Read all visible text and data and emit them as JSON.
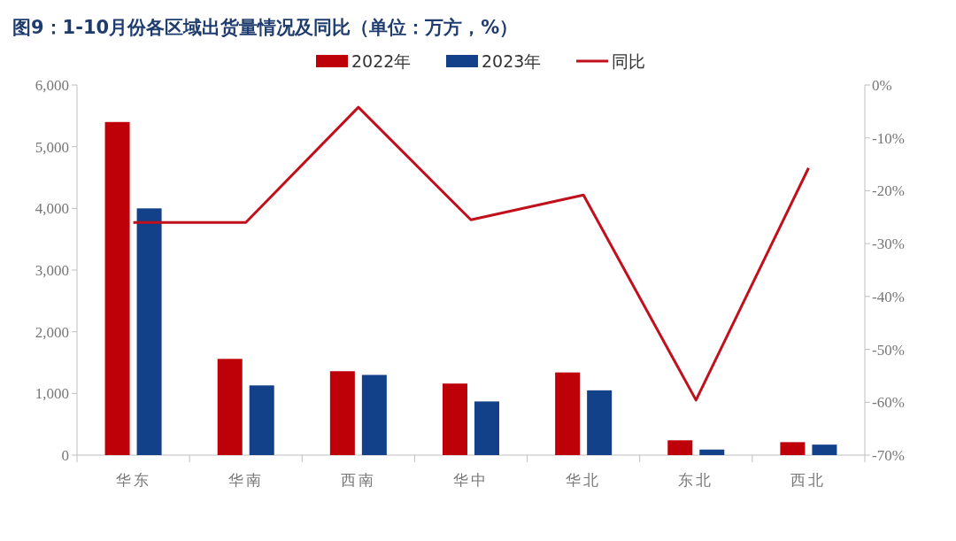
{
  "chart_data": {
    "type": "bar",
    "title": "图9：1-10月份各区域出货量情况及同比（单位：万方，%）",
    "categories": [
      "华东",
      "华南",
      "西南",
      "华中",
      "华北",
      "东北",
      "西北"
    ],
    "series": [
      {
        "name": "2022年",
        "color": "#be0008",
        "values": [
          5400,
          1560,
          1360,
          1160,
          1340,
          240,
          210
        ]
      },
      {
        "name": "2023年",
        "color": "#124089",
        "values": [
          4000,
          1130,
          1300,
          870,
          1050,
          90,
          170
        ]
      },
      {
        "name": "同比",
        "type": "line",
        "axis": "y2",
        "color": "#c0101c",
        "values": [
          -26,
          -26,
          -4.2,
          -25.5,
          -20.8,
          -59.6,
          -15.7
        ]
      }
    ],
    "ylim": [
      0,
      6000
    ],
    "yticks": [
      0,
      {
        "value": 1000,
        "label": "1,000"
      },
      {
        "value": 2000,
        "label": "2,000"
      },
      {
        "value": 3000,
        "label": "3,000"
      },
      {
        "value": 4000,
        "label": "4,000"
      },
      {
        "value": 5000,
        "label": "5,000"
      },
      {
        "value": 6000,
        "label": "6,000"
      }
    ],
    "y2lim": [
      -70,
      0
    ],
    "y2ticks": [
      {
        "value": -70,
        "label": "-70%"
      },
      {
        "value": -60,
        "label": "-60%"
      },
      {
        "value": -50,
        "label": "-50%"
      },
      {
        "value": -40,
        "label": "-40%"
      },
      {
        "value": -30,
        "label": "-30%"
      },
      {
        "value": -20,
        "label": "-20%"
      },
      {
        "value": -10,
        "label": "-10%"
      },
      {
        "value": 0,
        "label": "0%"
      }
    ],
    "legend": "top",
    "grid": false
  }
}
